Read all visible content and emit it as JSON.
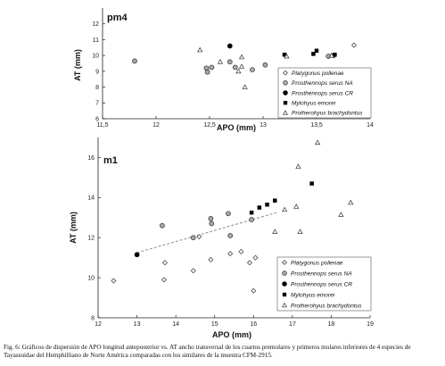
{
  "caption": {
    "text": "Fig. 6: Gráficos de dispersión de APO longitud anteposterior vs. AT ancho transversal de los cuartos premolares y primeros molares inferiores de 4 especies de Tayassuidae del Hemphilliano de Norte América comparadas con los similares de la muestra CFM-2915."
  },
  "chart_data": [
    {
      "type": "scatter",
      "panel_label": "pm4",
      "xlabel": "APO (mm)",
      "ylabel": "AT (mm)",
      "xlim": [
        11.5,
        14
      ],
      "ylim": [
        6,
        13
      ],
      "xticks": [
        "11,5",
        "12",
        "12,5",
        "13",
        "13,5",
        "14"
      ],
      "yticks": [
        "6",
        "7",
        "8",
        "9",
        "10",
        "11",
        "12"
      ],
      "legend_position": "bottom-right",
      "series": [
        {
          "name": "Platygonus pollenae",
          "marker": "diamond",
          "points": [
            [
              13.85,
              10.65
            ]
          ]
        },
        {
          "name": "Prosthennops serus NA",
          "marker": "circle-gray",
          "points": [
            [
              11.8,
              9.65
            ],
            [
              12.47,
              9.2
            ],
            [
              12.48,
              8.95
            ],
            [
              12.52,
              9.25
            ],
            [
              12.69,
              9.6
            ],
            [
              12.74,
              9.25
            ],
            [
              12.9,
              9.1
            ],
            [
              13.02,
              9.4
            ],
            [
              13.61,
              9.95
            ],
            [
              13.66,
              10.0
            ]
          ]
        },
        {
          "name": "Prosthennops serus CR",
          "marker": "circle-black",
          "points": [
            [
              12.69,
              10.6
            ]
          ]
        },
        {
          "name": "Mylohyus emorei",
          "marker": "square",
          "points": [
            [
              13.2,
              10.05
            ],
            [
              13.47,
              10.1
            ],
            [
              13.5,
              10.3
            ],
            [
              13.67,
              10.05
            ]
          ]
        },
        {
          "name": "Protherohyus brachydontus",
          "marker": "triangle",
          "points": [
            [
              12.41,
              10.35
            ],
            [
              12.6,
              9.6
            ],
            [
              12.77,
              9.0
            ],
            [
              12.8,
              9.9
            ],
            [
              12.8,
              9.3
            ],
            [
              12.83,
              8.0
            ],
            [
              13.22,
              9.95
            ],
            [
              13.64,
              10.0
            ]
          ]
        }
      ]
    },
    {
      "type": "scatter",
      "panel_label": "m1",
      "xlabel": "APO (mm)",
      "ylabel": "AT (mm)",
      "xlim": [
        12,
        19
      ],
      "ylim": [
        8,
        17
      ],
      "xticks": [
        "12",
        "13",
        "14",
        "15",
        "16",
        "17",
        "18",
        "19"
      ],
      "yticks": [
        "8",
        "10",
        "12",
        "14",
        "16"
      ],
      "legend_position": "bottom-right",
      "series": [
        {
          "name": "Platygonus pollenae",
          "marker": "diamond",
          "points": [
            [
              12.4,
              9.85
            ],
            [
              13.7,
              9.9
            ],
            [
              13.72,
              10.75
            ],
            [
              14.45,
              10.35
            ],
            [
              14.6,
              12.05
            ],
            [
              14.9,
              10.9
            ],
            [
              15.4,
              11.2
            ],
            [
              15.68,
              11.3
            ],
            [
              15.9,
              10.75
            ],
            [
              16.0,
              9.35
            ],
            [
              16.05,
              11.0
            ]
          ]
        },
        {
          "name": "Prosthennops serus NA",
          "marker": "circle-gray",
          "points": [
            [
              13.65,
              12.6
            ],
            [
              14.45,
              12.0
            ],
            [
              14.9,
              12.95
            ],
            [
              14.92,
              12.7
            ],
            [
              15.35,
              13.2
            ],
            [
              15.4,
              12.1
            ],
            [
              15.95,
              12.9
            ]
          ]
        },
        {
          "name": "Prosthennops serus CR",
          "marker": "circle-black",
          "points": [
            [
              13.0,
              11.15
            ]
          ]
        },
        {
          "name": "Mylohyus emorei",
          "marker": "square",
          "points": [
            [
              15.95,
              13.25
            ],
            [
              16.15,
              13.5
            ],
            [
              16.35,
              13.65
            ],
            [
              16.55,
              13.85
            ],
            [
              17.5,
              14.7
            ]
          ]
        },
        {
          "name": "Protherohyus brachydontus",
          "marker": "triangle",
          "points": [
            [
              16.55,
              12.3
            ],
            [
              16.8,
              13.4
            ],
            [
              17.1,
              13.55
            ],
            [
              17.2,
              12.3
            ],
            [
              17.15,
              15.55
            ],
            [
              17.65,
              16.75
            ],
            [
              18.25,
              13.15
            ],
            [
              18.5,
              13.75
            ]
          ]
        }
      ],
      "trendline": {
        "from": [
          13.0,
          11.25
        ],
        "to": [
          16.6,
          13.25
        ]
      }
    }
  ]
}
